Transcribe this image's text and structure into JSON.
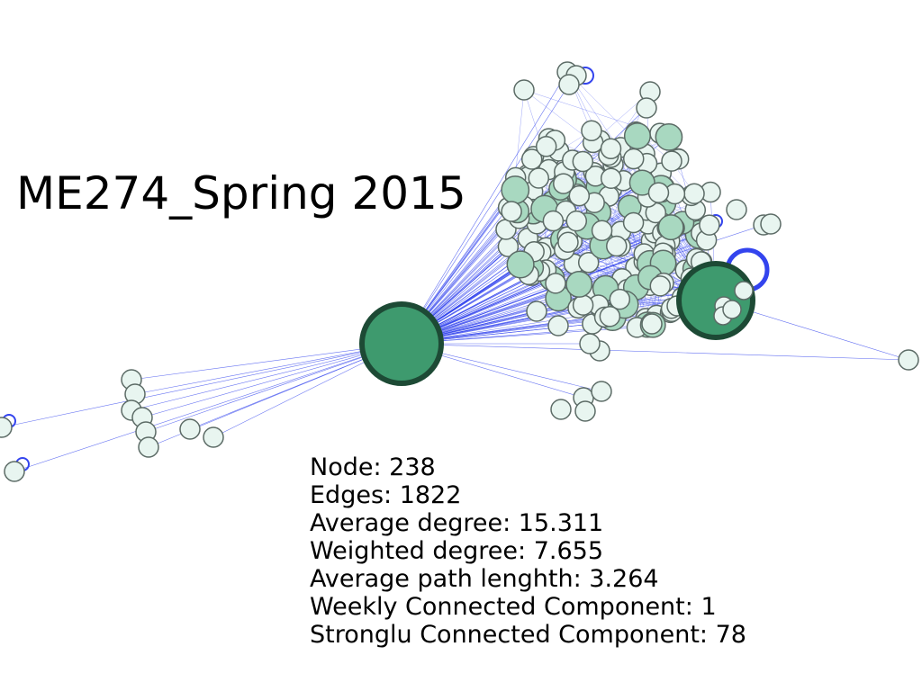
{
  "title": "ME274_Spring 2015",
  "stats": [
    "Node: 238",
    "Edges: 1822",
    "Average degree: 15.311",
    "Weighted degree: 7.655",
    "Average path lenghth: 3.264",
    "Weekly Connected Component: 1",
    "Stronglu Connected Component: 78"
  ],
  "colors": {
    "edge": "#3344ee",
    "node_fill": "#e8f5f0",
    "node_stroke": "#5c6b66",
    "hub_fill": "#3e9a6e",
    "hub_stroke": "#1d4a35",
    "mid_fill": "#a8d8c0"
  }
}
